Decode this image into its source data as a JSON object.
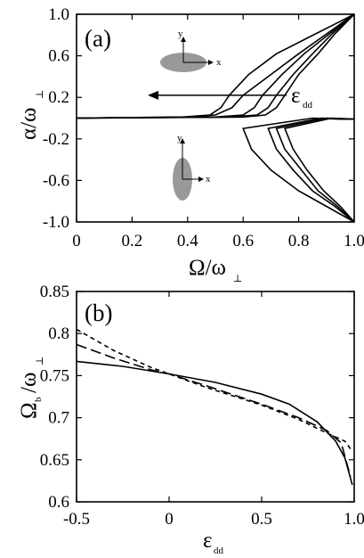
{
  "chart_data": [
    {
      "type": "line",
      "panel_label": "(a)",
      "xlabel": "Ω/ω⊥",
      "ylabel": "α/ω⊥",
      "xlim": [
        0,
        1
      ],
      "ylim": [
        -1,
        1
      ],
      "x_ticks": [
        "0",
        "0.2",
        "0.4",
        "0.6",
        "0.8",
        "1.0"
      ],
      "y_ticks": [
        "1.0",
        "0.6",
        "0.2",
        "-0.2",
        "-0.6",
        "-1.0"
      ],
      "grid": false,
      "annotation": "ε_dd",
      "upper_branches": [
        {
          "x": [
            0,
            0.4,
            0.5,
            0.56,
            0.6,
            0.7,
            0.8,
            0.9,
            1.0
          ],
          "y": [
            0,
            0.01,
            0.03,
            0.1,
            0.22,
            0.42,
            0.62,
            0.81,
            1.0
          ]
        },
        {
          "x": [
            0,
            0.5,
            0.6,
            0.64,
            0.67,
            0.74,
            0.82,
            0.91,
            1.0
          ],
          "y": [
            0,
            0.01,
            0.03,
            0.1,
            0.22,
            0.42,
            0.62,
            0.81,
            1.0
          ]
        },
        {
          "x": [
            0,
            0.55,
            0.65,
            0.69,
            0.72,
            0.78,
            0.85,
            0.92,
            1.0
          ],
          "y": [
            0,
            0.01,
            0.03,
            0.1,
            0.22,
            0.42,
            0.62,
            0.81,
            1.0
          ]
        },
        {
          "x": [
            0,
            0.6,
            0.68,
            0.72,
            0.75,
            0.8,
            0.87,
            0.93,
            1.0
          ],
          "y": [
            0,
            0.01,
            0.03,
            0.1,
            0.22,
            0.42,
            0.62,
            0.81,
            1.0
          ]
        },
        {
          "x": [
            0,
            0.38,
            0.48,
            0.52,
            0.55,
            0.62,
            0.72,
            0.86,
            1.0
          ],
          "y": [
            0,
            0.01,
            0.03,
            0.1,
            0.22,
            0.42,
            0.62,
            0.81,
            1.0
          ]
        }
      ],
      "lower_branches": [
        {
          "x_top": [
            0.85,
            0.9,
            0.95,
            1.0
          ],
          "y_top": [
            0,
            -0.005,
            -0.01,
            -0.01
          ],
          "x_bottom": [
            0.6,
            0.63,
            0.7,
            0.8,
            0.9,
            1.0
          ],
          "y_bottom": [
            -0.1,
            -0.3,
            -0.5,
            -0.7,
            -0.85,
            -1.0
          ]
        },
        {
          "x_top": [
            0.88,
            0.93,
            1.0
          ],
          "y_top": [
            0,
            -0.005,
            -0.01
          ],
          "x_bottom": [
            0.69,
            0.72,
            0.78,
            0.85,
            0.93,
            1.0
          ],
          "y_bottom": [
            -0.1,
            -0.3,
            -0.5,
            -0.7,
            -0.85,
            -1.0
          ]
        },
        {
          "x_top": [
            0.9,
            0.95,
            1.0
          ],
          "y_top": [
            0,
            -0.005,
            -0.01
          ],
          "x_bottom": [
            0.72,
            0.75,
            0.81,
            0.87,
            0.94,
            1.0
          ],
          "y_bottom": [
            -0.1,
            -0.3,
            -0.5,
            -0.7,
            -0.85,
            -1.0
          ]
        },
        {
          "x_top": [
            0.92,
            0.96,
            1.0
          ],
          "y_top": [
            0,
            -0.005,
            -0.01
          ],
          "x_bottom": [
            0.75,
            0.78,
            0.83,
            0.89,
            0.95,
            1.0
          ],
          "y_bottom": [
            -0.1,
            -0.3,
            -0.5,
            -0.7,
            -0.85,
            -1.0
          ]
        }
      ],
      "insets": [
        {
          "axis_y": "y",
          "axis_x": "x",
          "shape": "horizontal ellipse"
        },
        {
          "axis_y": "y",
          "axis_x": "x",
          "shape": "vertical ellipse"
        }
      ]
    },
    {
      "type": "line",
      "panel_label": "(b)",
      "xlabel": "ε_dd",
      "ylabel": "Ω_b/ω⊥",
      "xlim": [
        -0.5,
        1.0
      ],
      "ylim": [
        0.6,
        0.85
      ],
      "x_ticks": [
        "-0.5",
        "0",
        "0.5",
        "1.0"
      ],
      "y_ticks": [
        "0.85",
        "0.8",
        "0.75",
        "0.7",
        "0.65",
        "0.6"
      ],
      "grid": false,
      "series": [
        {
          "style": "solid",
          "x": [
            -0.5,
            -0.25,
            0,
            0.25,
            0.5,
            0.65,
            0.8,
            0.9,
            0.95,
            0.99
          ],
          "y": [
            0.767,
            0.761,
            0.752,
            0.742,
            0.728,
            0.716,
            0.695,
            0.672,
            0.652,
            0.62
          ]
        },
        {
          "style": "dashed",
          "x": [
            -0.5,
            -0.3,
            -0.1,
            0,
            0.2,
            0.5,
            0.7,
            0.85,
            0.95,
            0.99
          ],
          "y": [
            0.805,
            0.78,
            0.76,
            0.752,
            0.736,
            0.715,
            0.698,
            0.682,
            0.672,
            0.66
          ]
        },
        {
          "style": "dash-long",
          "x": [
            -0.5,
            -0.3,
            -0.1,
            0,
            0.2,
            0.5,
            0.7,
            0.85,
            0.93,
            0.98
          ],
          "y": [
            0.787,
            0.771,
            0.757,
            0.752,
            0.738,
            0.716,
            0.7,
            0.685,
            0.67,
            0.63
          ]
        }
      ]
    }
  ]
}
